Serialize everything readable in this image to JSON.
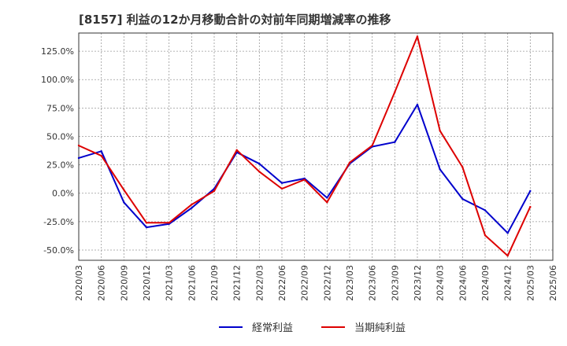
{
  "chart_data": {
    "type": "line",
    "title": "[8157]  利益の12か月移動合計の対前年同期増減率の推移",
    "xlabel": "",
    "ylabel": "",
    "ylim": [
      -59,
      141
    ],
    "yticks": [
      -50,
      -25,
      0,
      25,
      50,
      75,
      100,
      125
    ],
    "ytick_labels": [
      "-50.0%",
      "-25.0%",
      "0.0%",
      "25.0%",
      "50.0%",
      "75.0%",
      "100.0%",
      "125.0%"
    ],
    "categories": [
      "2020/03",
      "2020/06",
      "2020/09",
      "2020/12",
      "2021/03",
      "2021/06",
      "2021/09",
      "2021/12",
      "2022/03",
      "2022/06",
      "2022/09",
      "2022/12",
      "2023/03",
      "2023/06",
      "2023/09",
      "2023/12",
      "2024/03",
      "2024/06",
      "2024/09",
      "2024/12",
      "2025/03",
      "2025/06"
    ],
    "grid": true,
    "legend_position": "bottom",
    "series": [
      {
        "name": "経常利益",
        "color": "#0000cc",
        "values": [
          31,
          37,
          -8,
          -30,
          -27,
          -13,
          4,
          36,
          26,
          9,
          13,
          -4,
          26,
          41,
          45,
          78,
          21,
          -5,
          -15,
          -35,
          2,
          null
        ]
      },
      {
        "name": "当期純利益",
        "color": "#dd0000",
        "values": [
          42,
          33,
          3,
          -26,
          -26,
          -10,
          2,
          38,
          19,
          4,
          12,
          -8,
          27,
          42,
          89,
          138,
          55,
          23,
          -37,
          -55,
          -12,
          null
        ]
      }
    ]
  }
}
